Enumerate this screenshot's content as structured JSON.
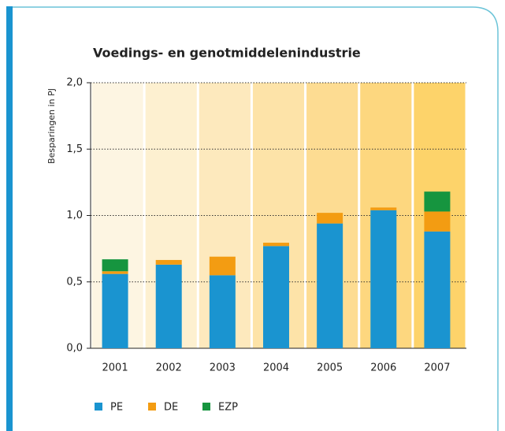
{
  "chart_data": {
    "type": "stacked-bar",
    "title": "Voedings- en genotmiddelenindustrie",
    "y_label": "Besparingen in PJ",
    "categories": [
      "2001",
      "2002",
      "2003",
      "2004",
      "2005",
      "2006",
      "2007"
    ],
    "series": [
      {
        "name": "PE",
        "color": "#1a94d0",
        "values": [
          0.56,
          0.63,
          0.55,
          0.77,
          0.94,
          1.04,
          0.88
        ]
      },
      {
        "name": "DE",
        "color": "#f39c12",
        "values": [
          0.02,
          0.035,
          0.14,
          0.025,
          0.08,
          0.02,
          0.15
        ]
      },
      {
        "name": "EZP",
        "color": "#16953f",
        "values": [
          0.09,
          0,
          0,
          0,
          0,
          0,
          0.15
        ]
      }
    ],
    "ylim": [
      0,
      2
    ],
    "yticks": [
      {
        "value": 0,
        "label": "0,0"
      },
      {
        "value": 0.5,
        "label": "0,5"
      },
      {
        "value": 1,
        "label": "1,0"
      },
      {
        "value": 1.5,
        "label": "1,5"
      },
      {
        "value": 2,
        "label": "2,0"
      }
    ],
    "grid": true,
    "legend": "bottom-left"
  }
}
